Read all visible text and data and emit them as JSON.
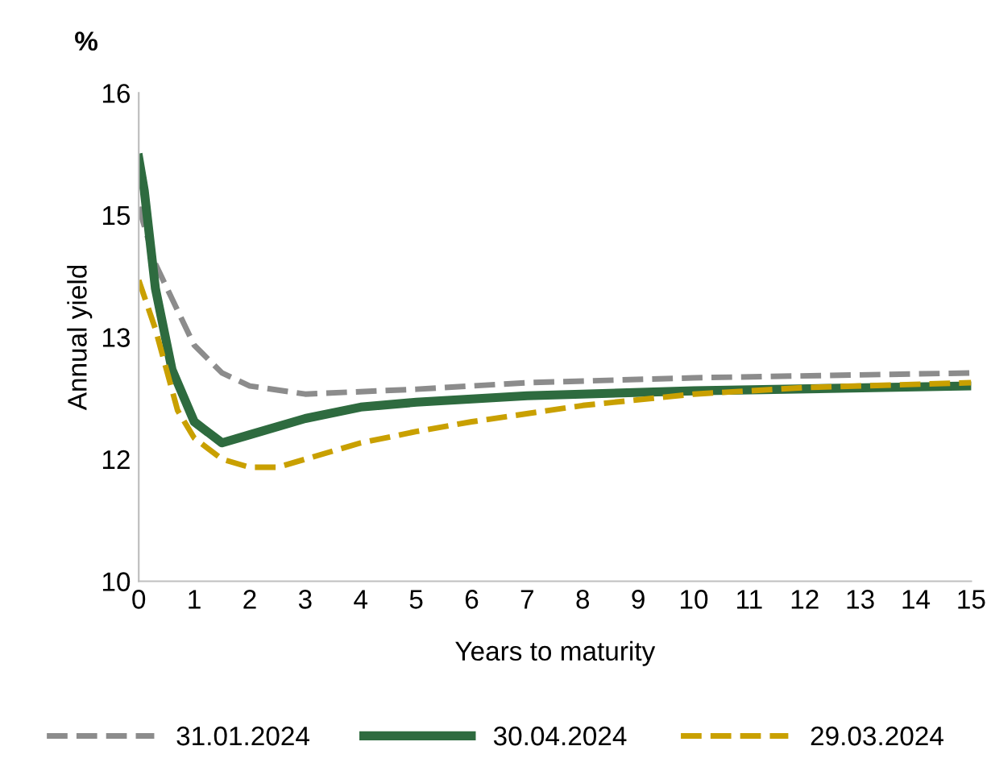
{
  "chart_data": {
    "type": "line",
    "xlabel": "Years to maturity",
    "ylabel": "Annual yield",
    "annotations": [
      "%"
    ],
    "xlim": [
      0,
      15
    ],
    "xticks": [
      0,
      1,
      2,
      3,
      4,
      5,
      6,
      7,
      8,
      9,
      10,
      11,
      12,
      13,
      14,
      15
    ],
    "ylim": [
      10,
      16
    ],
    "yticks": [
      10,
      {
        "value": 11.5,
        "label": "12"
      },
      13,
      {
        "value": 14.5,
        "label": "15"
      },
      16
    ],
    "grid": false,
    "legend": "bottom",
    "marker": "none",
    "series": [
      {
        "name": "31.01.2024",
        "color": "#8c8c8c",
        "line_style": "dashed",
        "x": [
          0,
          0.3,
          1,
          1.5,
          2,
          3,
          5,
          7,
          10,
          15
        ],
        "values": [
          14.6,
          13.9,
          12.9,
          12.56,
          12.4,
          12.3,
          12.36,
          12.44,
          12.5,
          12.56
        ]
      },
      {
        "name": "30.04.2024",
        "color": "#2e6b3f",
        "line_style": "solid",
        "x": [
          0,
          0.1,
          0.3,
          0.6,
          1,
          1.5,
          2,
          3,
          4,
          5,
          7,
          10,
          15
        ],
        "values": [
          15.2,
          14.8,
          13.6,
          12.6,
          11.96,
          11.7,
          11.8,
          12.0,
          12.14,
          12.2,
          12.28,
          12.34,
          12.4
        ]
      },
      {
        "name": "29.03.2024",
        "color": "#c9a000",
        "line_style": "dashed",
        "x": [
          0,
          0.3,
          0.7,
          1,
          1.5,
          2,
          2.5,
          3,
          4,
          5,
          6,
          8,
          10,
          12,
          15
        ],
        "values": [
          13.7,
          13.1,
          12.1,
          11.76,
          11.5,
          11.4,
          11.4,
          11.5,
          11.7,
          11.84,
          11.96,
          12.16,
          12.3,
          12.38,
          12.44
        ]
      }
    ]
  }
}
